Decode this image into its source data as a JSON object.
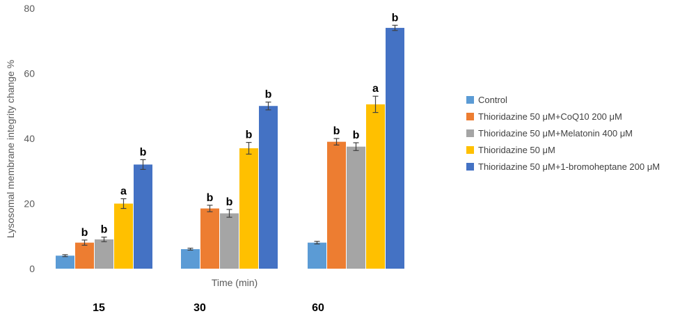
{
  "chart_data": {
    "type": "bar",
    "xlabel": "Time (min)",
    "ylabel": "Lysosomal membrane integrity change %",
    "ylim": [
      0,
      80
    ],
    "yticks": [
      0,
      20,
      40,
      60,
      80
    ],
    "categories": [
      "15",
      "30",
      "60"
    ],
    "grid": false,
    "legend_position": "right",
    "error_bars": true,
    "series": [
      {
        "name": "Control",
        "color": "#5B9BD5",
        "values": [
          4.0,
          6.0,
          8.0
        ],
        "errors": [
          0.3,
          0.3,
          0.4
        ],
        "labels": [
          "",
          "",
          ""
        ]
      },
      {
        "name": "Thioridazine 50 μM+CoQ10 200 μM",
        "color": "#ED7D31",
        "values": [
          8.0,
          18.5,
          39.0
        ],
        "errors": [
          0.8,
          1.0,
          1.0
        ],
        "labels": [
          "b",
          "b",
          "b"
        ]
      },
      {
        "name": "Thioridazine 50 μM+Melatonin 400 μM",
        "color": "#A5A5A5",
        "values": [
          9.0,
          17.0,
          37.5
        ],
        "errors": [
          0.7,
          1.2,
          1.2
        ],
        "labels": [
          "b",
          "b",
          "b"
        ]
      },
      {
        "name": "Thioridazine 50 μM",
        "color": "#FFC000",
        "values": [
          20.0,
          37.0,
          50.5
        ],
        "errors": [
          1.5,
          1.8,
          2.5
        ],
        "labels": [
          "a",
          "b",
          "a"
        ]
      },
      {
        "name": "Thioridazine 50 μM+1-bromoheptane 200 μM",
        "color": "#4472C4",
        "values": [
          32.0,
          50.0,
          74.0
        ],
        "errors": [
          1.5,
          1.2,
          0.8
        ],
        "labels": [
          "b",
          "b",
          "b"
        ]
      }
    ]
  }
}
